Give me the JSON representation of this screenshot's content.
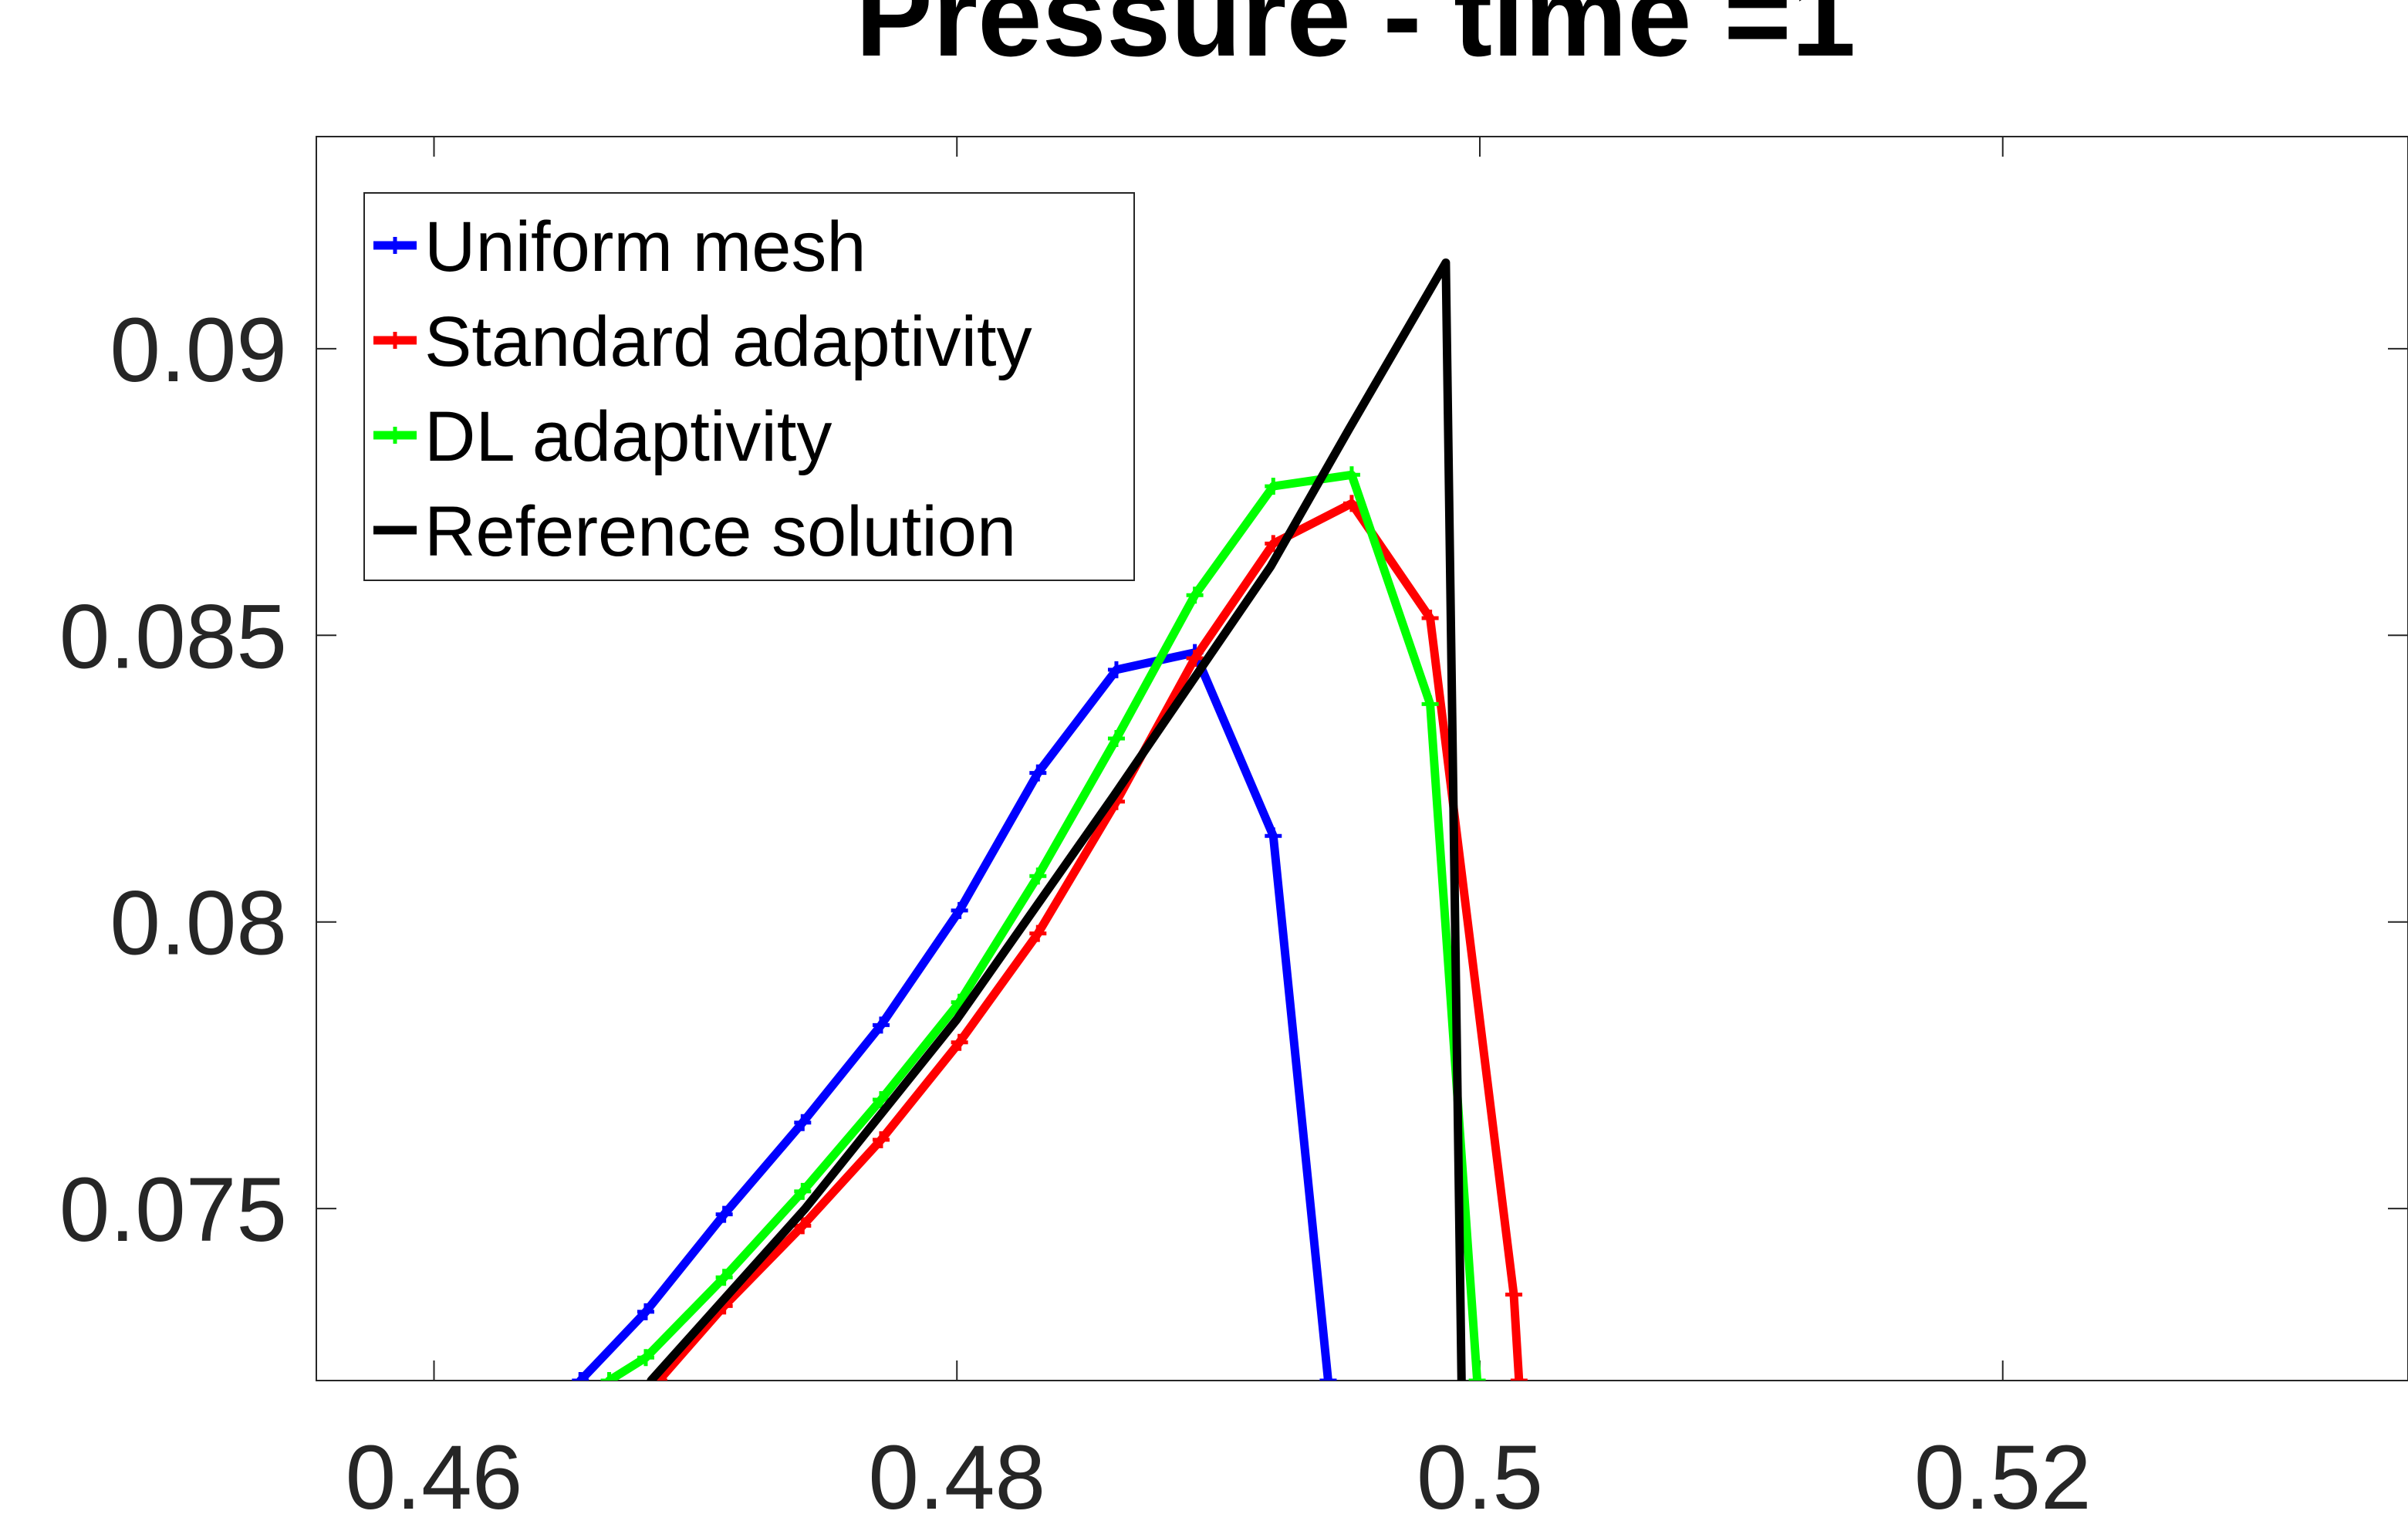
{
  "chart_data": {
    "type": "line",
    "title": "Pressure - time =1",
    "xlabel": "",
    "ylabel": "",
    "xlim": [
      0.4555,
      0.5355
    ],
    "ylim": [
      0.072,
      0.0937
    ],
    "x_ticks": [
      {
        "value": 0.46,
        "label": "0.46"
      },
      {
        "value": 0.48,
        "label": "0.48"
      },
      {
        "value": 0.5,
        "label": "0.5"
      },
      {
        "value": 0.52,
        "label": "0.52"
      }
    ],
    "y_ticks": [
      {
        "value": 0.075,
        "label": "0.075"
      },
      {
        "value": 0.08,
        "label": "0.08"
      },
      {
        "value": 0.085,
        "label": "0.085"
      },
      {
        "value": 0.09,
        "label": "0.09"
      }
    ],
    "grid": false,
    "legend_position": "top-left",
    "series": [
      {
        "name": "Uniform mesh",
        "color": "#0000ff",
        "markers": true,
        "points": [
          [
            0.4656,
            0.072
          ],
          [
            0.4681,
            0.0732
          ],
          [
            0.4711,
            0.0749
          ],
          [
            0.4741,
            0.0765
          ],
          [
            0.4771,
            0.0782
          ],
          [
            0.4801,
            0.0802
          ],
          [
            0.4831,
            0.0826
          ],
          [
            0.4861,
            0.0844
          ],
          [
            0.4891,
            0.0847
          ],
          [
            0.4921,
            0.0815
          ],
          [
            0.4942,
            0.072
          ]
        ]
      },
      {
        "name": "Standard adaptivity",
        "color": "#ff0000",
        "markers": true,
        "points": [
          [
            0.4686,
            0.072
          ],
          [
            0.4711,
            0.0733
          ],
          [
            0.4741,
            0.0747
          ],
          [
            0.4771,
            0.0762
          ],
          [
            0.4801,
            0.0779
          ],
          [
            0.4831,
            0.0798
          ],
          [
            0.4861,
            0.0821
          ],
          [
            0.4891,
            0.0846
          ],
          [
            0.4921,
            0.0866
          ],
          [
            0.4951,
            0.0873
          ],
          [
            0.4981,
            0.0853
          ],
          [
            0.5013,
            0.0735
          ],
          [
            0.5015,
            0.072
          ]
        ]
      },
      {
        "name": "DL adaptivity",
        "color": "#00ff00",
        "markers": true,
        "points": [
          [
            0.4667,
            0.072
          ],
          [
            0.4681,
            0.0724
          ],
          [
            0.4711,
            0.0738
          ],
          [
            0.4741,
            0.0753
          ],
          [
            0.4771,
            0.0769
          ],
          [
            0.4801,
            0.0786
          ],
          [
            0.4831,
            0.0808
          ],
          [
            0.4861,
            0.0832
          ],
          [
            0.4891,
            0.0857
          ],
          [
            0.4921,
            0.0876
          ],
          [
            0.4951,
            0.0878
          ],
          [
            0.4981,
            0.0838
          ],
          [
            0.4999,
            0.072
          ]
        ]
      },
      {
        "name": "Reference solution",
        "color": "#000000",
        "markers": false,
        "points": [
          [
            0.4683,
            0.072
          ],
          [
            0.4742,
            0.075
          ],
          [
            0.48,
            0.0783
          ],
          [
            0.486,
            0.0822
          ],
          [
            0.492,
            0.0862
          ],
          [
            0.495,
            0.0886
          ],
          [
            0.4987,
            0.0915
          ],
          [
            0.4993,
            0.072
          ]
        ]
      }
    ]
  }
}
